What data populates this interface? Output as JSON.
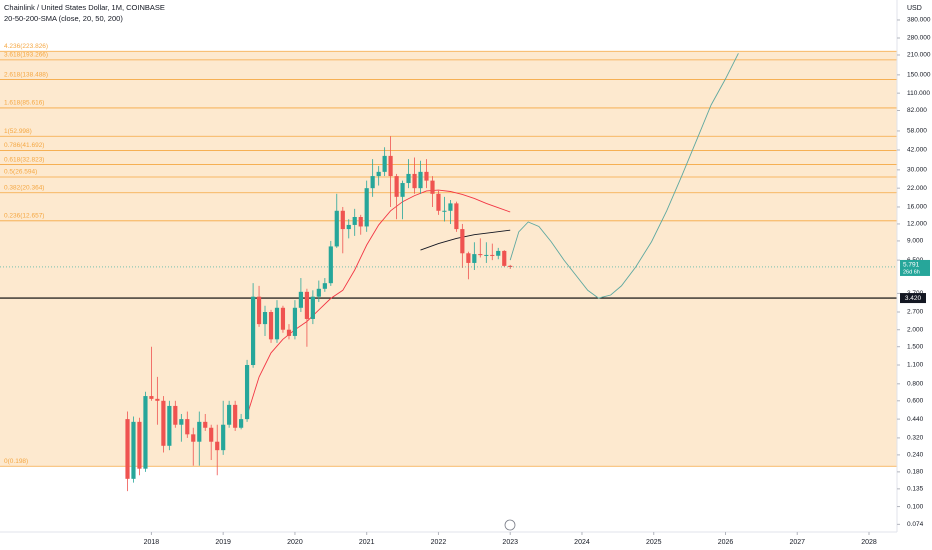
{
  "chart_data": {
    "type": "candlestick",
    "title": "Chainlink / United States Dollar, 1M, COINBASE",
    "subtitle": "20-50-200-SMA (close, 20, 50, 200)",
    "currency": "USD",
    "log_scale": true,
    "xlim": [
      2015.89,
      2028.39
    ],
    "xticks": [
      2018,
      2019,
      2020,
      2021,
      2022,
      2023,
      2024,
      2025,
      2026,
      2027,
      2028
    ],
    "ylim": [
      0.065,
      533
    ],
    "yticks": [
      {
        "value": 380,
        "label": "380.000"
      },
      {
        "value": 280,
        "label": "280.000"
      },
      {
        "value": 210,
        "label": "210.000"
      },
      {
        "value": 150,
        "label": "150.000"
      },
      {
        "value": 110,
        "label": "110.000"
      },
      {
        "value": 82,
        "label": "82.000"
      },
      {
        "value": 58,
        "label": "58.000"
      },
      {
        "value": 42,
        "label": "42.000"
      },
      {
        "value": 30,
        "label": "30.000"
      },
      {
        "value": 22,
        "label": "22.000"
      },
      {
        "value": 16,
        "label": "16.000"
      },
      {
        "value": 12,
        "label": "12.000"
      },
      {
        "value": 9,
        "label": "9.000"
      },
      {
        "value": 6.5,
        "label": "6.500"
      },
      {
        "value": 3.7,
        "label": "3.700"
      },
      {
        "value": 2.7,
        "label": "2.700"
      },
      {
        "value": 2,
        "label": "2.000"
      },
      {
        "value": 1.5,
        "label": "1.500"
      },
      {
        "value": 1.1,
        "label": "1.100"
      },
      {
        "value": 0.8,
        "label": "0.800"
      },
      {
        "value": 0.6,
        "label": "0.600"
      },
      {
        "value": 0.44,
        "label": "0.440"
      },
      {
        "value": 0.32,
        "label": "0.320"
      },
      {
        "value": 0.24,
        "label": "0.240"
      },
      {
        "value": 0.18,
        "label": "0.180"
      },
      {
        "value": 0.135,
        "label": "0.135"
      },
      {
        "value": 0.1,
        "label": "0.100"
      },
      {
        "value": 0.074,
        "label": "0.074"
      }
    ],
    "up_color": "#26a69a",
    "down_color": "#ef5350",
    "candles": {
      "x": [
        2017.667,
        2017.75,
        2017.833,
        2017.917,
        2018,
        2018.083,
        2018.167,
        2018.25,
        2018.333,
        2018.417,
        2018.5,
        2018.583,
        2018.667,
        2018.75,
        2018.833,
        2018.917,
        2019,
        2019.083,
        2019.167,
        2019.25,
        2019.333,
        2019.417,
        2019.5,
        2019.583,
        2019.667,
        2019.75,
        2019.833,
        2019.917,
        2020,
        2020.083,
        2020.167,
        2020.25,
        2020.333,
        2020.417,
        2020.5,
        2020.583,
        2020.667,
        2020.75,
        2020.833,
        2020.917,
        2021,
        2021.083,
        2021.167,
        2021.25,
        2021.333,
        2021.417,
        2021.5,
        2021.583,
        2021.667,
        2021.75,
        2021.833,
        2021.917,
        2022,
        2022.083,
        2022.167,
        2022.25,
        2022.333,
        2022.417,
        2022.5,
        2022.583,
        2022.667,
        2022.75,
        2022.833,
        2022.917,
        2023
      ],
      "open": [
        0.44,
        0.16,
        0.42,
        0.19,
        0.65,
        0.62,
        0.6,
        0.28,
        0.55,
        0.4,
        0.44,
        0.34,
        0.3,
        0.42,
        0.38,
        0.3,
        0.26,
        0.4,
        0.56,
        0.38,
        0.44,
        1.1,
        3.5,
        2.2,
        2.7,
        1.7,
        2.9,
        2.0,
        1.8,
        2.9,
        3.8,
        2.4,
        3.5,
        4.0,
        4.4,
        8.2,
        15,
        11,
        11.8,
        13.5,
        11.5,
        22,
        27,
        29,
        38,
        27,
        19,
        24,
        28,
        22,
        29,
        25,
        20,
        15,
        15,
        17,
        11,
        7.3,
        6.2,
        7.2,
        7.1,
        7.1,
        7.0,
        7.6,
        5.9
      ],
      "high": [
        0.5,
        0.46,
        0.45,
        0.7,
        1.5,
        0.9,
        0.65,
        0.6,
        0.6,
        0.48,
        0.5,
        0.38,
        0.5,
        0.48,
        0.4,
        0.4,
        0.6,
        0.6,
        0.6,
        0.48,
        1.2,
        4.4,
        4.2,
        3.0,
        2.8,
        3.3,
        3.0,
        2.2,
        3.3,
        4.8,
        4.0,
        3.9,
        4.6,
        4.8,
        9.0,
        20,
        16,
        13,
        15.5,
        14,
        25,
        36,
        32,
        44,
        53,
        28,
        25,
        36,
        37,
        35,
        36,
        27,
        21,
        19,
        18,
        17.5,
        12,
        7.5,
        8.8,
        9.4,
        8.8,
        8.6,
        8.0,
        7.7,
        6.0
      ],
      "low": [
        0.13,
        0.15,
        0.17,
        0.18,
        0.6,
        0.4,
        0.25,
        0.26,
        0.38,
        0.3,
        0.32,
        0.2,
        0.2,
        0.36,
        0.22,
        0.17,
        0.24,
        0.38,
        0.36,
        0.37,
        0.42,
        1.05,
        2.1,
        1.8,
        1.6,
        1.6,
        1.9,
        1.7,
        1.7,
        2.7,
        1.5,
        2.2,
        3.2,
        3.8,
        4.2,
        8.0,
        7.3,
        9.4,
        9.8,
        10,
        10.5,
        19,
        23,
        27,
        16,
        13,
        13,
        22,
        20,
        20,
        22,
        16,
        14,
        12.5,
        12,
        10.5,
        5.7,
        4.7,
        5.5,
        6.8,
        6.2,
        6.5,
        6.6,
        5.8,
        5.6
      ],
      "close": [
        0.16,
        0.42,
        0.19,
        0.65,
        0.62,
        0.6,
        0.28,
        0.55,
        0.4,
        0.44,
        0.34,
        0.3,
        0.42,
        0.38,
        0.3,
        0.26,
        0.4,
        0.56,
        0.38,
        0.44,
        1.1,
        3.5,
        2.2,
        2.7,
        1.7,
        2.9,
        2.0,
        1.8,
        2.9,
        3.8,
        2.4,
        3.5,
        4.0,
        4.4,
        8.2,
        15,
        11,
        11.8,
        13.5,
        11.5,
        22,
        27,
        29,
        38,
        27,
        19,
        24,
        28,
        22,
        29,
        25,
        20,
        15,
        15,
        17,
        11,
        7.3,
        6.2,
        7.2,
        7.1,
        7.1,
        7.0,
        7.6,
        5.9,
        5.791
      ]
    },
    "lines": [
      {
        "color": "#f23645",
        "x": [
          2019.333,
          2019.5,
          2019.667,
          2019.833,
          2020,
          2020.167,
          2020.333,
          2020.5,
          2020.667,
          2020.833,
          2021,
          2021.167,
          2021.333,
          2021.5,
          2021.667,
          2021.833,
          2022,
          2022.167,
          2022.333,
          2022.5,
          2022.667,
          2022.833,
          2023
        ],
        "values": [
          0.47,
          0.9,
          1.35,
          1.7,
          2.0,
          2.3,
          2.8,
          3.4,
          3.9,
          5.5,
          8.4,
          11.8,
          15,
          17.5,
          19.4,
          21,
          21.3,
          20.8,
          19.8,
          18.5,
          17,
          15.8,
          14.7
        ]
      },
      {
        "color": "#131722",
        "x": [
          2021.75,
          2022,
          2022.25,
          2022.5,
          2022.75,
          2023
        ],
        "values": [
          7.7,
          8.6,
          9.4,
          10,
          10.4,
          10.8
        ]
      },
      {
        "color": "#5fa8a0",
        "x": [
          2023,
          2023.12,
          2023.25,
          2023.4,
          2023.57,
          2023.75,
          2023.92,
          2024.08,
          2024.23,
          2024.4,
          2024.55,
          2024.75,
          2024.97,
          2025.18,
          2025.39,
          2025.6,
          2025.8,
          2026,
          2026.18
        ],
        "values": [
          6.5,
          10.5,
          12.4,
          11.5,
          8.9,
          6.5,
          5.0,
          3.9,
          3.42,
          3.6,
          4.2,
          5.8,
          8.9,
          15,
          27,
          50,
          90,
          140,
          216
        ]
      }
    ],
    "fib_color": "#f5a742",
    "fib_fill": "#fde9cf",
    "fib_levels": [
      {
        "price": 223.826,
        "label": "4.236(223.826)"
      },
      {
        "price": 193.266,
        "label": "3.618(193.266)"
      },
      {
        "price": 138.488,
        "label": "2.618(138.488)"
      },
      {
        "price": 85.616,
        "label": "1.618(85.616)"
      },
      {
        "price": 52.998,
        "label": "1(52.998)"
      },
      {
        "price": 41.692,
        "label": "0.786(41.692)"
      },
      {
        "price": 32.823,
        "label": "0.618(32.823)"
      },
      {
        "price": 26.594,
        "label": "0.5(26.594)"
      },
      {
        "price": 20.364,
        "label": "0.382(20.364)"
      },
      {
        "price": 12.657,
        "label": "0.236(12.657)"
      },
      {
        "price": 0.198,
        "label": "0(0.198)"
      }
    ],
    "hline": {
      "value": 3.42,
      "label": "3.420"
    },
    "last_price": {
      "value": 5.791,
      "label": "5.791",
      "countdown": "26d 6h"
    }
  }
}
